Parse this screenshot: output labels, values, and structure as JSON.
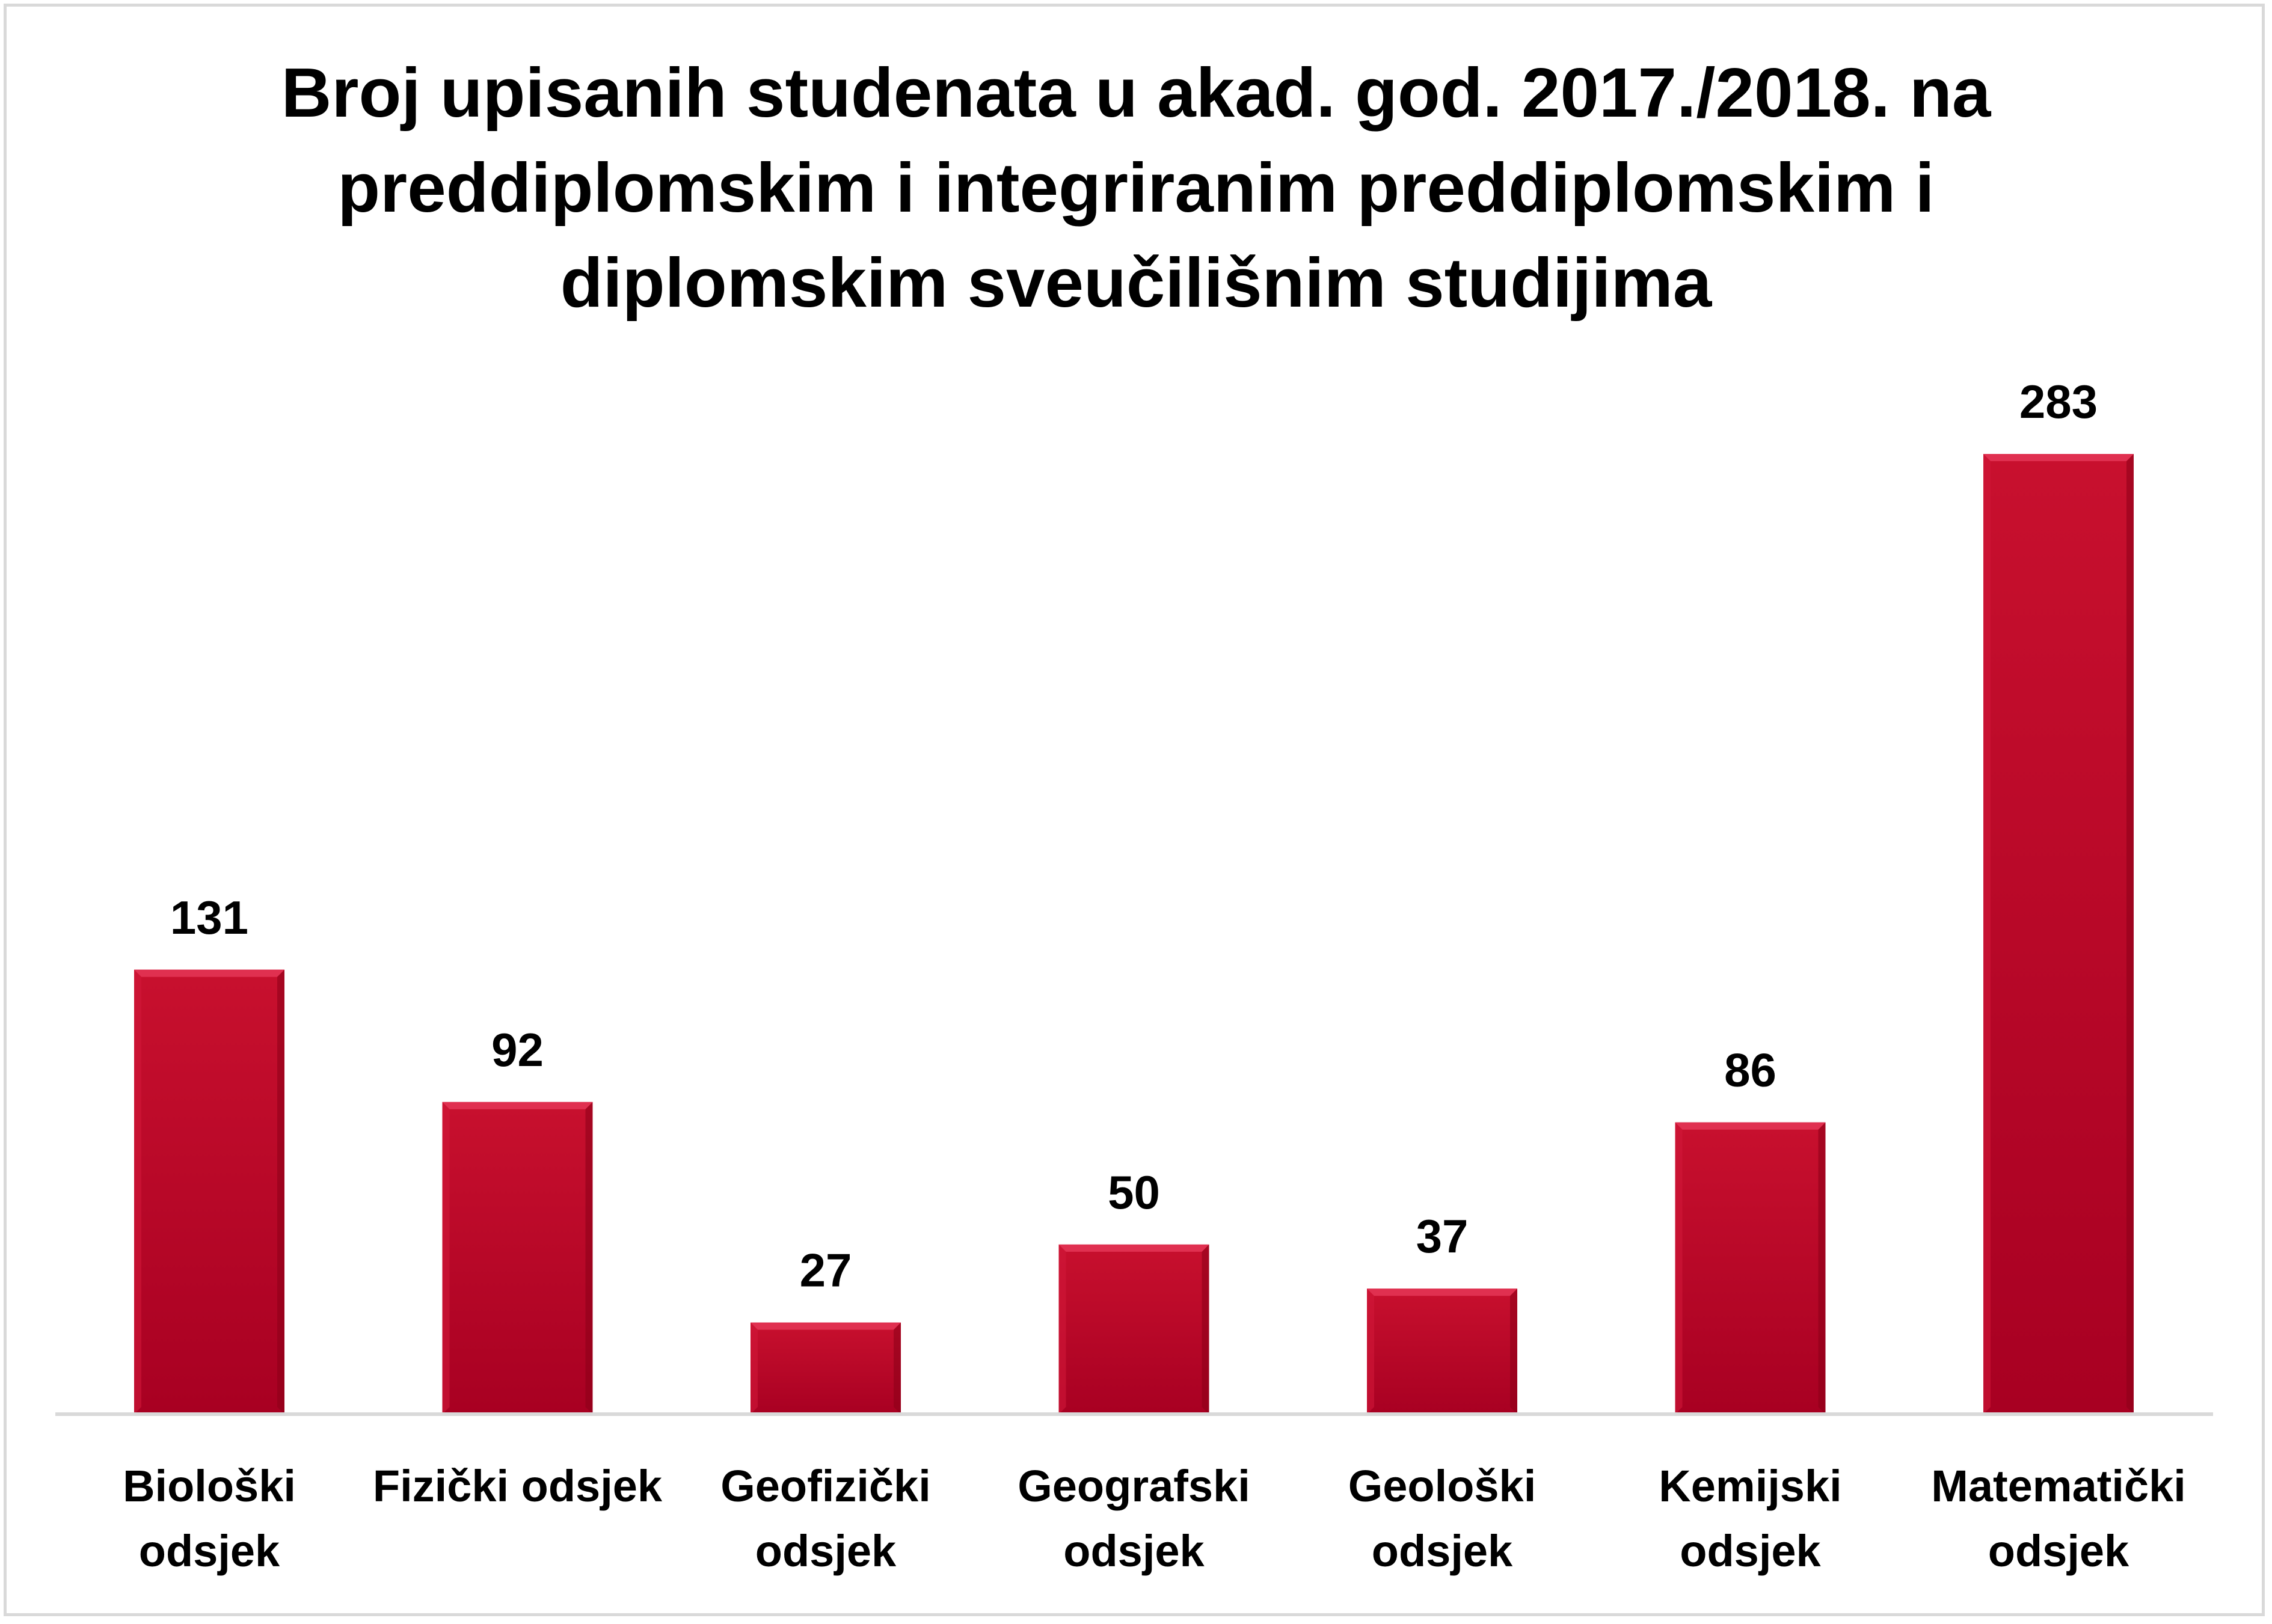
{
  "chart_data": {
    "type": "bar",
    "title_lines": [
      "Broj upisanih studenata u akad. god. 2017./2018. na",
      "preddiplomskim i integriranim preddiplomskim i",
      "diplomskim sveučilišnim studijima"
    ],
    "categories": [
      [
        "Biološki",
        "odsjek"
      ],
      [
        "Fizički odsjek"
      ],
      [
        "Geofizički",
        "odsjek"
      ],
      [
        "Geografski",
        "odsjek"
      ],
      [
        "Geološki",
        "odsjek"
      ],
      [
        "Kemijski",
        "odsjek"
      ],
      [
        "Matematički",
        "odsjek"
      ]
    ],
    "values": [
      131,
      92,
      27,
      50,
      37,
      86,
      283
    ],
    "data_labels": [
      "131",
      "92",
      "27",
      "50",
      "37",
      "86",
      "283"
    ],
    "ylim": [
      0,
      283
    ],
    "grid": false,
    "legend": "none",
    "colors": {
      "bar": "#b00020",
      "bar_top": "#e03050",
      "axis": "#d9d9d9"
    }
  }
}
